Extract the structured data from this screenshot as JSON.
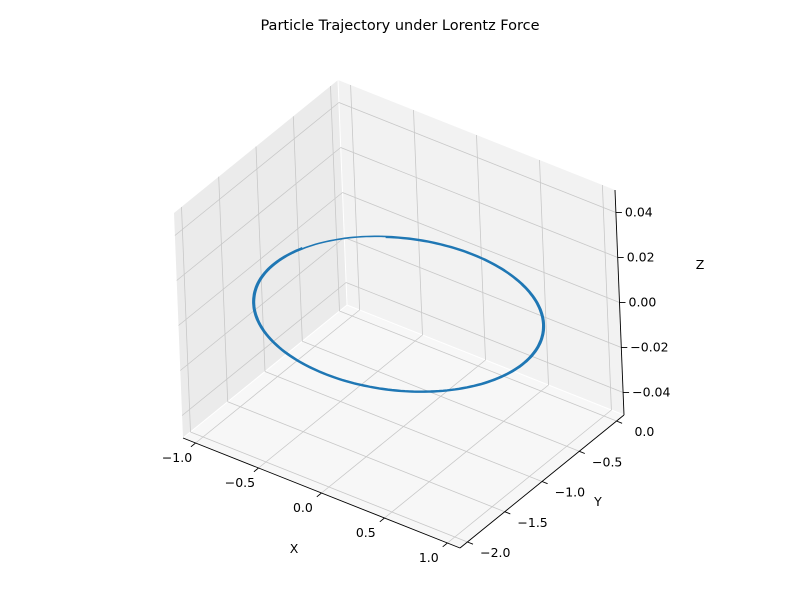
{
  "chart_data": {
    "type": "line3d",
    "title": "Particle Trajectory under Lorentz Force",
    "xlabel": "X",
    "ylabel": "Y",
    "zlabel": "Z",
    "xlim": [
      -1.1,
      1.1
    ],
    "ylim": [
      -2.1,
      0.1
    ],
    "zlim": [
      -0.05,
      0.05
    ],
    "x_ticks": [
      -1.0,
      -0.5,
      0.0,
      0.5,
      1.0
    ],
    "x_tick_labels": [
      "−1.0",
      "−0.5",
      "0.0",
      "0.5",
      "1.0"
    ],
    "y_ticks": [
      -2.0,
      -1.5,
      -1.0,
      -0.5,
      0.0
    ],
    "y_tick_labels": [
      "−2.0",
      "−1.5",
      "−1.0",
      "−0.5",
      "0.0"
    ],
    "z_ticks": [
      -0.04,
      -0.02,
      0.0,
      0.02,
      0.04
    ],
    "z_tick_labels": [
      "−0.04",
      "−0.02",
      "0.00",
      "0.02",
      "0.04"
    ],
    "grid": true,
    "series": [
      {
        "color": "#1f77b4",
        "path": "circle",
        "center": [
          0.0,
          -1.0,
          0.0
        ],
        "radius": 1.0,
        "turns": 1.9,
        "z": 0.0
      }
    ],
    "colors": {
      "line": "#1f77b4",
      "pane_left": "#ebebeb",
      "pane_back": "#f2f2f2",
      "pane_floor": "#f7f7f7",
      "grid": "#c8c8c8"
    }
  }
}
